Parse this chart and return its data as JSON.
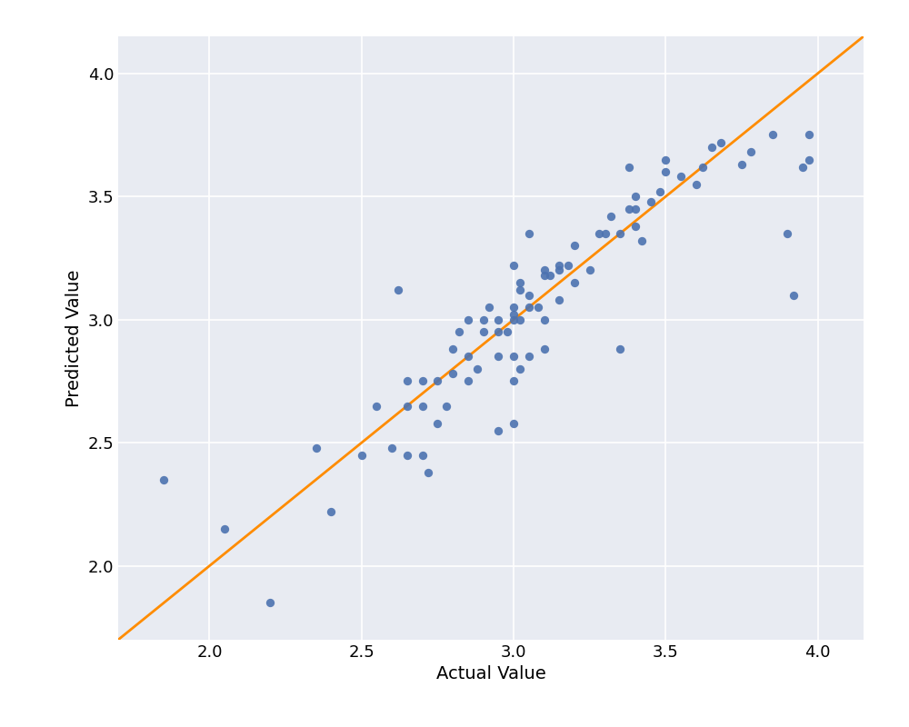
{
  "xlabel": "Actual Value",
  "ylabel": "Predicted Value",
  "xlim": [
    1.7,
    4.15
  ],
  "ylim": [
    1.7,
    4.15
  ],
  "xticks": [
    2.0,
    2.5,
    3.0,
    3.5,
    4.0
  ],
  "yticks": [
    2.0,
    2.5,
    3.0,
    3.5,
    4.0
  ],
  "scatter_color": "#4C72B0",
  "line_color": "#FF8C00",
  "axes_background_color": "#E8EBF2",
  "fig_background_color": "#FFFFFF",
  "scatter_points": [
    [
      1.85,
      2.35
    ],
    [
      2.05,
      2.15
    ],
    [
      2.2,
      1.85
    ],
    [
      2.35,
      2.48
    ],
    [
      2.4,
      2.22
    ],
    [
      2.5,
      2.45
    ],
    [
      2.55,
      2.65
    ],
    [
      2.6,
      2.48
    ],
    [
      2.62,
      3.12
    ],
    [
      2.65,
      2.45
    ],
    [
      2.65,
      2.65
    ],
    [
      2.65,
      2.75
    ],
    [
      2.7,
      2.45
    ],
    [
      2.7,
      2.65
    ],
    [
      2.7,
      2.75
    ],
    [
      2.72,
      2.38
    ],
    [
      2.75,
      2.58
    ],
    [
      2.75,
      2.75
    ],
    [
      2.78,
      2.65
    ],
    [
      2.8,
      2.78
    ],
    [
      2.8,
      2.88
    ],
    [
      2.82,
      2.95
    ],
    [
      2.85,
      2.75
    ],
    [
      2.85,
      2.85
    ],
    [
      2.85,
      3.0
    ],
    [
      2.88,
      2.8
    ],
    [
      2.9,
      2.95
    ],
    [
      2.9,
      3.0
    ],
    [
      2.92,
      3.05
    ],
    [
      2.95,
      2.55
    ],
    [
      2.95,
      2.85
    ],
    [
      2.95,
      2.95
    ],
    [
      2.95,
      3.0
    ],
    [
      2.98,
      2.95
    ],
    [
      3.0,
      2.58
    ],
    [
      3.0,
      2.75
    ],
    [
      3.0,
      2.85
    ],
    [
      3.0,
      3.0
    ],
    [
      3.0,
      3.02
    ],
    [
      3.0,
      3.05
    ],
    [
      3.0,
      3.22
    ],
    [
      3.02,
      2.8
    ],
    [
      3.02,
      3.0
    ],
    [
      3.02,
      3.12
    ],
    [
      3.02,
      3.15
    ],
    [
      3.05,
      2.85
    ],
    [
      3.05,
      3.05
    ],
    [
      3.05,
      3.1
    ],
    [
      3.05,
      3.35
    ],
    [
      3.08,
      3.05
    ],
    [
      3.1,
      2.88
    ],
    [
      3.1,
      3.0
    ],
    [
      3.1,
      3.18
    ],
    [
      3.1,
      3.2
    ],
    [
      3.12,
      3.18
    ],
    [
      3.15,
      3.08
    ],
    [
      3.15,
      3.2
    ],
    [
      3.15,
      3.22
    ],
    [
      3.18,
      3.22
    ],
    [
      3.2,
      3.15
    ],
    [
      3.2,
      3.3
    ],
    [
      3.25,
      3.2
    ],
    [
      3.28,
      3.35
    ],
    [
      3.3,
      3.35
    ],
    [
      3.32,
      3.42
    ],
    [
      3.35,
      2.88
    ],
    [
      3.35,
      3.35
    ],
    [
      3.38,
      3.45
    ],
    [
      3.38,
      3.62
    ],
    [
      3.4,
      3.38
    ],
    [
      3.4,
      3.45
    ],
    [
      3.4,
      3.5
    ],
    [
      3.42,
      3.32
    ],
    [
      3.45,
      3.48
    ],
    [
      3.48,
      3.52
    ],
    [
      3.5,
      3.6
    ],
    [
      3.5,
      3.65
    ],
    [
      3.55,
      3.58
    ],
    [
      3.6,
      3.55
    ],
    [
      3.62,
      3.62
    ],
    [
      3.65,
      3.7
    ],
    [
      3.68,
      3.72
    ],
    [
      3.75,
      3.63
    ],
    [
      3.78,
      3.68
    ],
    [
      3.85,
      3.75
    ],
    [
      3.9,
      3.35
    ],
    [
      3.92,
      3.1
    ],
    [
      3.95,
      3.62
    ],
    [
      3.97,
      3.65
    ],
    [
      3.97,
      3.75
    ]
  ],
  "marker_size": 45,
  "marker_alpha": 0.9,
  "fontsize_label": 14,
  "fontsize_tick": 13,
  "line_width": 2.0,
  "grid_color": "#FFFFFF",
  "grid_linewidth": 1.2
}
